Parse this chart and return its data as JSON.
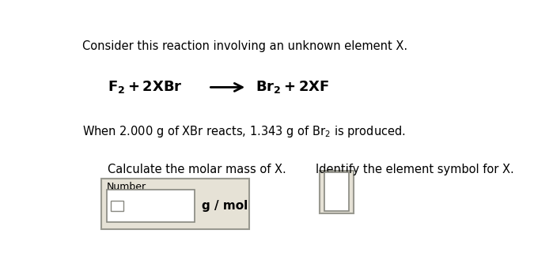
{
  "bg_color": "#ffffff",
  "title_text": "Consider this reaction involving an unknown element X.",
  "title_fontsize": 10.5,
  "eq_fontsize": 13,
  "when_fontsize": 10.5,
  "calc_label": "Calculate the molar mass of X.",
  "calc_fontsize": 10.5,
  "identify_label": "Identify the element symbol for X.",
  "identify_fontsize": 10.5,
  "gmol_label": "g / mol",
  "gmol_fontsize": 11,
  "box_bg": "#e6e2d6",
  "inner_box_bg": "#ffffff",
  "box_edge_color": "#999990",
  "inner_edge_color": "#888880"
}
